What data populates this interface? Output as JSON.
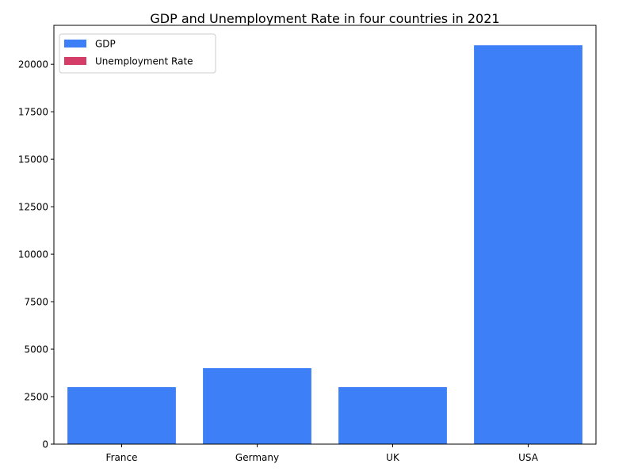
{
  "chart_data": {
    "type": "bar",
    "title": "GDP and Unemployment Rate in four countries in 2021",
    "xlabel": "",
    "ylabel": "",
    "categories": [
      "France",
      "Germany",
      "UK",
      "USA"
    ],
    "series": [
      {
        "name": "GDP",
        "color": "#3d7ff7",
        "values": [
          3000,
          4000,
          3000,
          21000
        ]
      },
      {
        "name": "Unemployment Rate",
        "color": "#d43d68",
        "values": [
          8,
          3.5,
          4.5,
          5.4
        ]
      }
    ],
    "ylim": [
      0,
      22050
    ],
    "yticks": [
      0,
      2500,
      5000,
      7500,
      10000,
      12500,
      15000,
      17500,
      20000
    ],
    "grid": false,
    "legend_position": "top-left"
  }
}
